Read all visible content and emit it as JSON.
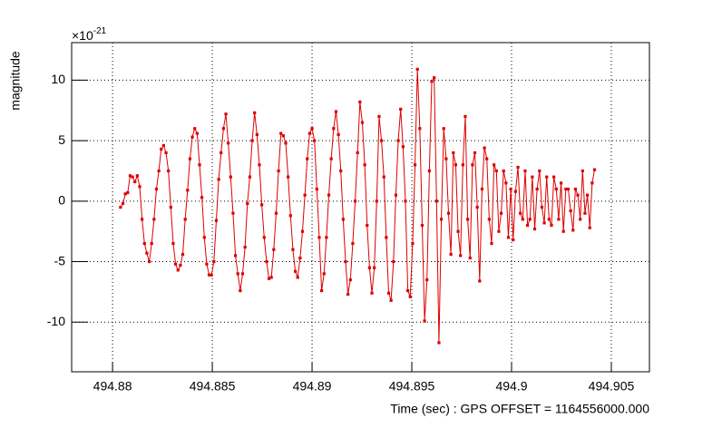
{
  "chart_data": {
    "type": "line",
    "y_axis_label": "magnitude",
    "x_axis_label": "Time (sec) : GPS OFFSET = 1164556000.000",
    "y_multiplier": {
      "base": "×10",
      "exponent": "-21"
    },
    "xlim": [
      494.87795,
      494.90691
    ],
    "ylim": [
      -14.1,
      13.1
    ],
    "xticks": [
      494.88,
      494.885,
      494.89,
      494.895,
      494.9,
      494.905
    ],
    "yticks": [
      -10,
      -5,
      0,
      5,
      10
    ],
    "grid": true,
    "x": [
      494.8804,
      494.88052,
      494.88064,
      494.88076,
      494.88088,
      494.881,
      494.88112,
      494.88124,
      494.88136,
      494.88148,
      494.8816,
      494.88172,
      494.88184,
      494.88196,
      494.88208,
      494.8822,
      494.88232,
      494.88244,
      494.88256,
      494.88268,
      494.8828,
      494.88292,
      494.88304,
      494.88316,
      494.88328,
      494.8834,
      494.88352,
      494.88364,
      494.88376,
      494.88388,
      494.884,
      494.88412,
      494.88424,
      494.88436,
      494.88448,
      494.8846,
      494.88472,
      494.88484,
      494.88496,
      494.88508,
      494.8852,
      494.88532,
      494.88544,
      494.88556,
      494.88568,
      494.8858,
      494.88592,
      494.88604,
      494.88616,
      494.88628,
      494.8864,
      494.88652,
      494.88664,
      494.88676,
      494.88688,
      494.887,
      494.88712,
      494.88724,
      494.88736,
      494.88748,
      494.8876,
      494.88772,
      494.88784,
      494.88796,
      494.88808,
      494.8882,
      494.88832,
      494.88844,
      494.88856,
      494.88868,
      494.8888,
      494.88892,
      494.88904,
      494.88916,
      494.88928,
      494.8894,
      494.88952,
      494.88964,
      494.88976,
      494.88988,
      494.89,
      494.89012,
      494.89024,
      494.89036,
      494.89048,
      494.8906,
      494.89072,
      494.89084,
      494.89096,
      494.89108,
      494.8912,
      494.89132,
      494.89144,
      494.89156,
      494.89168,
      494.8918,
      494.89192,
      494.89204,
      494.89216,
      494.89228,
      494.8924,
      494.89252,
      494.89264,
      494.89276,
      494.89288,
      494.893,
      494.89312,
      494.89324,
      494.89336,
      494.89348,
      494.8936,
      494.89372,
      494.89384,
      494.89396,
      494.89408,
      494.8942,
      494.89432,
      494.89444,
      494.89456,
      494.89468,
      494.8948,
      494.89492,
      494.89504,
      494.89516,
      494.89528,
      494.8954,
      494.89552,
      494.89564,
      494.89576,
      494.89588,
      494.896,
      494.89612,
      494.89624,
      494.89636,
      494.89648,
      494.8966,
      494.89672,
      494.89684,
      494.89696,
      494.89708,
      494.8972,
      494.89732,
      494.89744,
      494.89756,
      494.89768,
      494.8978,
      494.89792,
      494.89804,
      494.89816,
      494.89828,
      494.8984,
      494.89852,
      494.89864,
      494.89876,
      494.89888,
      494.899,
      494.89912,
      494.89924,
      494.89936,
      494.89948,
      494.8996,
      494.89972,
      494.89984,
      494.89996,
      494.90008,
      494.9002,
      494.90032,
      494.90044,
      494.90056,
      494.90068,
      494.9008,
      494.90092,
      494.90104,
      494.90116,
      494.90128,
      494.9014,
      494.90152,
      494.90164,
      494.90176,
      494.90188,
      494.902,
      494.90212,
      494.90224,
      494.90236,
      494.90248,
      494.9026,
      494.90272,
      494.90284,
      494.90296,
      494.90308,
      494.9032,
      494.90332,
      494.90344,
      494.90356,
      494.90368,
      494.9038,
      494.90392,
      494.90404,
      494.90416
    ],
    "series": [
      {
        "color": "#dd0000",
        "values": [
          -0.5,
          -0.2,
          0.6,
          0.7,
          2.1,
          2.0,
          1.6,
          2.1,
          1.2,
          -1.5,
          -3.5,
          -4.3,
          -5.0,
          -3.5,
          -1.5,
          1.0,
          2.5,
          4.3,
          4.6,
          4.0,
          2.5,
          -0.5,
          -3.5,
          -5.2,
          -5.7,
          -5.3,
          -4.4,
          -1.5,
          0.9,
          3.5,
          5.3,
          6.0,
          5.6,
          3.0,
          0.3,
          -3.0,
          -5.2,
          -6.1,
          -6.1,
          -5.0,
          -1.6,
          1.8,
          4.0,
          6.0,
          7.2,
          4.8,
          2.0,
          -1.0,
          -4.5,
          -6.0,
          -7.4,
          -6.0,
          -3.8,
          -0.2,
          2.0,
          5.0,
          7.3,
          5.5,
          3.0,
          -0.3,
          -3.0,
          -5.0,
          -6.4,
          -6.3,
          -4.0,
          -1.0,
          2.5,
          5.6,
          5.4,
          4.8,
          2.0,
          -1.2,
          -4.0,
          -5.8,
          -6.3,
          -4.7,
          -2.5,
          0.5,
          3.5,
          5.6,
          6.0,
          5.0,
          1.0,
          -3.0,
          -7.4,
          -6.0,
          -3.0,
          0.5,
          3.5,
          6.0,
          7.4,
          5.5,
          2.5,
          -1.5,
          -5.0,
          -7.7,
          -6.5,
          -3.5,
          0.0,
          4.0,
          8.2,
          6.5,
          3.0,
          -2.0,
          -5.5,
          -7.6,
          -5.5,
          0.0,
          7.0,
          5.0,
          2.0,
          -3.0,
          -7.6,
          -8.2,
          -5.0,
          0.5,
          5.0,
          7.6,
          4.5,
          0.0,
          -7.4,
          -7.9,
          -3.5,
          3.0,
          10.9,
          6.0,
          -2.0,
          -9.9,
          -6.5,
          2.5,
          9.9,
          10.2,
          0.0,
          -11.7,
          -1.5,
          6.0,
          3.5,
          -1.0,
          -4.4,
          4.0,
          3.0,
          -2.5,
          -4.5,
          3.0,
          7.0,
          -1.5,
          -4.7,
          3.0,
          4.0,
          -0.5,
          -6.6,
          1.0,
          4.4,
          3.5,
          -1.5,
          -3.5,
          3.0,
          2.5,
          -2.5,
          -1.0,
          2.5,
          1.5,
          -3.0,
          1.0,
          -3.2,
          0.8,
          2.8,
          -1.0,
          -1.5,
          2.5,
          -2.0,
          -1.5,
          2.0,
          -2.3,
          1.0,
          2.5,
          -0.5,
          -1.8,
          2.0,
          -1.5,
          -2.0,
          2.0,
          1.0,
          -1.5,
          1.5,
          -2.5,
          1.0,
          1.0,
          -0.8,
          -2.4,
          1.0,
          0.5,
          -1.5,
          2.5,
          -1.0,
          0.5,
          -2.2,
          1.5,
          2.6
        ]
      }
    ]
  }
}
